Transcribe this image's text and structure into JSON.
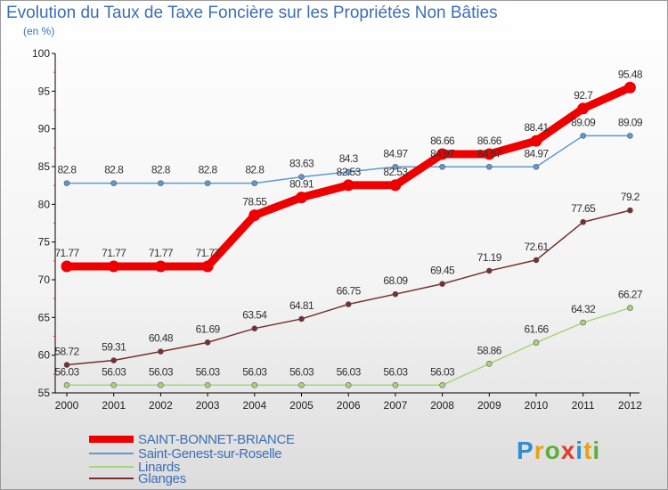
{
  "title": "Evolution du Taux de Taxe Foncière sur les Propriétés Non Bâties",
  "unit_label": "(en %)",
  "brand": {
    "text": "Proxiti",
    "letter_colors": [
      "#2e8fd0",
      "#e8a21a",
      "#5caf3a",
      "#e23a2e",
      "#2e8fd0",
      "#e8a21a",
      "#5caf3a"
    ]
  },
  "chart_data": {
    "type": "line",
    "x": [
      2000,
      2001,
      2002,
      2003,
      2004,
      2005,
      2006,
      2007,
      2008,
      2009,
      2010,
      2011,
      2012
    ],
    "ylim": [
      55,
      100
    ],
    "yticks": [
      55,
      60,
      65,
      70,
      75,
      80,
      85,
      90,
      95,
      100
    ],
    "grid": false,
    "legend_position": "bottom-left",
    "series": [
      {
        "name": "SAINT-BONNET-BRIANCE",
        "color": "#ee0000",
        "emphasis": true,
        "values": [
          71.77,
          71.77,
          71.77,
          71.77,
          78.55,
          80.91,
          82.53,
          82.53,
          86.66,
          86.66,
          88.41,
          92.7,
          95.48
        ],
        "labels": [
          "71.77",
          "71.77",
          "71.77",
          "71.77",
          "78.55",
          "80.91",
          "82.53",
          "82.53",
          "86.66",
          "86.66",
          "88.41",
          "92.7",
          "95.48"
        ]
      },
      {
        "name": "Saint-Genest-sur-Roselle",
        "color": "#5d9ad1",
        "values": [
          82.8,
          82.8,
          82.8,
          82.8,
          82.8,
          83.63,
          84.3,
          84.97,
          84.97,
          84.97,
          84.97,
          89.09,
          89.09
        ],
        "labels": [
          "82.8",
          "82.8",
          "82.8",
          "82.8",
          "82.8",
          "83.63",
          "84.3",
          "84.97",
          "84.97",
          "84.97",
          "84.97",
          "89.09",
          "89.09"
        ]
      },
      {
        "name": "Linards",
        "color": "#a5d67a",
        "values": [
          56.03,
          56.03,
          56.03,
          56.03,
          56.03,
          56.03,
          56.03,
          56.03,
          56.03,
          58.86,
          61.66,
          64.32,
          66.27
        ],
        "labels": [
          "56.03",
          "56.03",
          "56.03",
          "56.03",
          "56.03",
          "56.03",
          "56.03",
          "56.03",
          "56.03",
          "58.86",
          "61.66",
          "64.32",
          "66.27"
        ]
      },
      {
        "name": "Glanges",
        "color": "#7a2e2e",
        "values": [
          58.72,
          59.31,
          60.48,
          61.69,
          63.54,
          64.81,
          66.75,
          68.09,
          69.45,
          71.19,
          72.61,
          77.65,
          79.2
        ],
        "labels": [
          "58.72",
          "59.31",
          "60.48",
          "61.69",
          "63.54",
          "64.81",
          "66.75",
          "68.09",
          "69.45",
          "71.19",
          "72.61",
          "77.65",
          "79.2"
        ]
      }
    ]
  }
}
